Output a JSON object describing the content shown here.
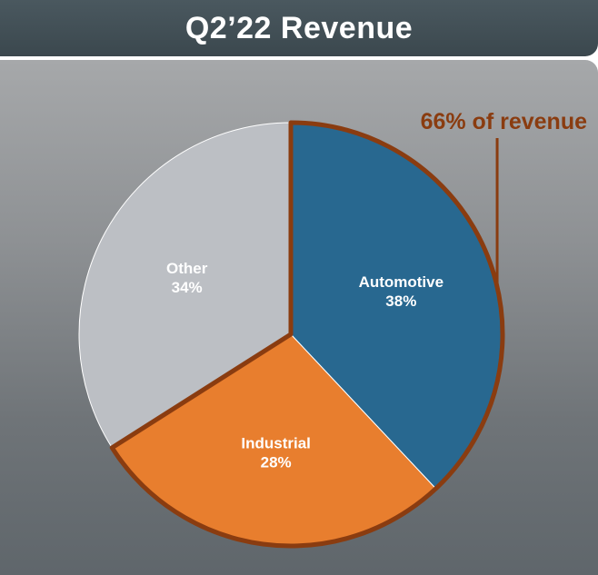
{
  "title": "Q2’22 Revenue",
  "colors": {
    "automotive": "#286890",
    "industrial": "#e87e2e",
    "other": "#bcbfc4",
    "highlight_border": "#8a3c10",
    "callout": "#8a3c10"
  },
  "chart_data": {
    "type": "pie",
    "title": "Q2’22 Revenue",
    "slices": [
      {
        "label": "Automotive",
        "percent_label": "38%",
        "value": 38,
        "color": "#286890"
      },
      {
        "label": "Industrial",
        "percent_label": "28%",
        "value": 28,
        "color": "#e87e2e"
      },
      {
        "label": "Other",
        "percent_label": "34%",
        "value": 34,
        "color": "#bcbfc4"
      }
    ],
    "highlighted_slices": [
      "Automotive",
      "Industrial"
    ],
    "annotations": [
      {
        "text": "66% of revenue",
        "refers_to": [
          "Automotive",
          "Industrial"
        ]
      }
    ],
    "legend": "none"
  }
}
